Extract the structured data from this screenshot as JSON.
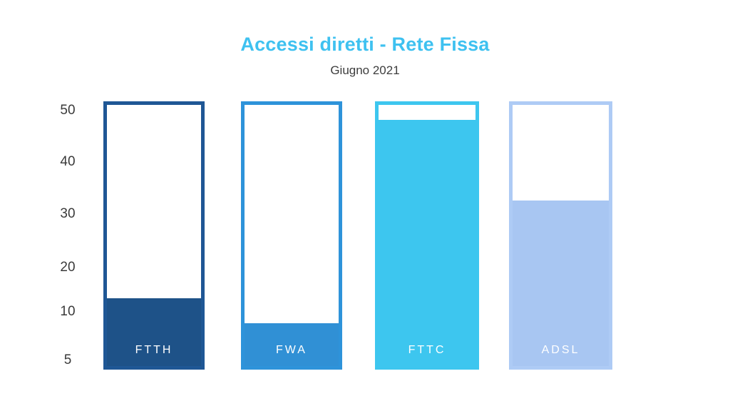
{
  "header": {
    "title": "Accessi diretti - Rete Fissa",
    "subtitle": "Giugno 2021"
  },
  "colors": {
    "title_accent": "#3ec1f0",
    "axis_text": "#3a3a3a",
    "background": "#ffffff",
    "bar_label_text": "#ffffff"
  },
  "y_axis": {
    "ticks": [
      "50",
      "40",
      "30",
      "20",
      "10",
      "5"
    ]
  },
  "bars": [
    {
      "label": "FTTH",
      "value": 12.5,
      "fill_percent": 26,
      "fill_color": "#1e5288",
      "border_color": "#1f5795"
    },
    {
      "label": "FWA",
      "value": 8.5,
      "fill_percent": 16.3,
      "fill_color": "#3090d5",
      "border_color": "#2e93da"
    },
    {
      "label": "FTTC",
      "value": 48.5,
      "fill_percent": 94.4,
      "fill_color": "#3dc6ef",
      "border_color": "#3dc6ef"
    },
    {
      "label": "ADSL",
      "value": 32,
      "fill_percent": 63.5,
      "fill_color": "#a8c6f2",
      "border_color": "#aecbf5"
    }
  ],
  "chart_data": {
    "type": "bar",
    "title": "Accessi diretti - Rete Fissa",
    "subtitle": "Giugno 2021",
    "categories": [
      "FTTH",
      "FWA",
      "FTTC",
      "ADSL"
    ],
    "values": [
      12.5,
      8.5,
      48.5,
      32
    ],
    "value_precision_note": "values estimated from axis position",
    "xlabel": "",
    "ylabel": "",
    "ylim": [
      0,
      52
    ],
    "y_ticks": [
      50,
      40,
      30,
      20,
      10,
      5
    ],
    "grid": false,
    "legend": false,
    "series_colors": [
      "#1e5288",
      "#3090d5",
      "#3dc6ef",
      "#a8c6f2"
    ]
  }
}
